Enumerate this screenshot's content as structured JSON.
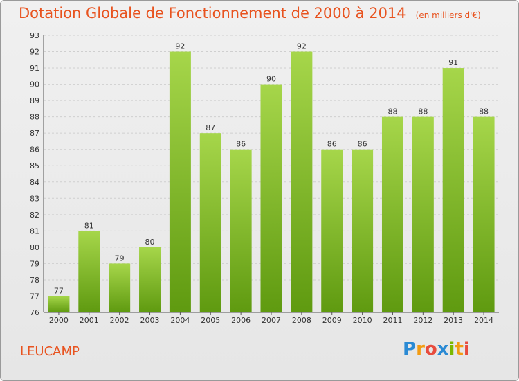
{
  "header": {
    "title": "Dotation Globale de Fonctionnement de 2000 à 2014",
    "subtitle": "(en milliers d'€)"
  },
  "footer": {
    "commune": "LEUCAMP",
    "logo_letters": [
      "P",
      "r",
      "o",
      "x",
      "i",
      "t",
      "i"
    ]
  },
  "colors": {
    "title": "#e8531f",
    "bar_top": "#a6d64a",
    "bar_bottom": "#5f9a10",
    "grid": "#cfcfcf"
  },
  "chart_data": {
    "type": "bar",
    "title": "Dotation Globale de Fonctionnement de 2000 à 2014",
    "subtitle": "(en milliers d'€)",
    "categories": [
      "2000",
      "2001",
      "2002",
      "2003",
      "2004",
      "2005",
      "2006",
      "2007",
      "2008",
      "2009",
      "2010",
      "2011",
      "2012",
      "2013",
      "2014"
    ],
    "values": [
      77,
      81,
      79,
      80,
      92,
      87,
      86,
      90,
      92,
      86,
      86,
      88,
      88,
      91,
      88
    ],
    "ylim": [
      76,
      93
    ],
    "yticks": [
      76,
      77,
      78,
      79,
      80,
      81,
      82,
      83,
      84,
      85,
      86,
      87,
      88,
      89,
      90,
      91,
      92,
      93
    ],
    "grid": true,
    "xlabel": "",
    "ylabel": ""
  }
}
